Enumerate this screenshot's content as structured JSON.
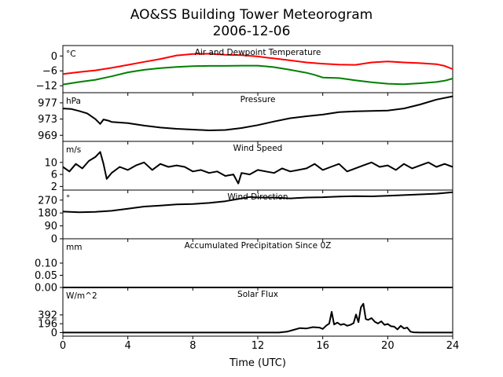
{
  "chart_data": {
    "type": "line",
    "title": "AO&SS Building Tower Meteorogram",
    "subtitle": "2006-12-06",
    "xlabel": "Time (UTC)",
    "xlim": [
      0,
      24
    ],
    "xticks": [
      0,
      4,
      8,
      12,
      16,
      20,
      24
    ],
    "panels": [
      {
        "title": "Air and Dewpoint Temperature",
        "unit": "°C",
        "ylim": [
          -14.8,
          4.2
        ],
        "yticks": [
          0,
          -6,
          -12
        ],
        "ytick_labels": [
          "0",
          "−6",
          "−12"
        ],
        "series": [
          {
            "color": "#ff0000",
            "x": [
              0,
              1,
              2,
              3,
              4,
              5,
              6,
              7,
              8,
              9,
              10,
              11,
              12,
              12.5,
              13,
              14,
              15,
              16,
              17,
              18,
              19,
              20,
              21,
              22,
              23,
              23.5,
              24
            ],
            "values": [
              -7.3,
              -6.5,
              -5.8,
              -4.8,
              -3.6,
              -2.4,
              -1.2,
              0.2,
              0.8,
              0.9,
              0.5,
              0.3,
              -0.2,
              -0.6,
              -1.0,
              -1.8,
              -2.6,
              -3.1,
              -3.5,
              -3.6,
              -2.6,
              -2.2,
              -2.6,
              -2.9,
              -3.3,
              -4.0,
              -5.3
            ]
          },
          {
            "color": "#008000",
            "x": [
              0,
              1,
              2,
              3,
              4,
              5,
              6,
              7,
              8,
              9,
              10,
              11,
              12,
              12.5,
              13,
              14,
              15,
              15.5,
              16,
              17,
              18,
              19,
              20,
              21,
              22,
              23,
              23.5,
              24
            ],
            "values": [
              -11.5,
              -10.5,
              -9.6,
              -8.2,
              -6.6,
              -5.6,
              -4.9,
              -4.4,
              -4.1,
              -4.0,
              -4.0,
              -3.9,
              -3.9,
              -4.2,
              -4.5,
              -5.6,
              -6.8,
              -7.6,
              -8.7,
              -8.9,
              -9.8,
              -10.6,
              -11.2,
              -11.4,
              -11.0,
              -10.5,
              -10.0,
              -9.1
            ]
          }
        ]
      },
      {
        "title": "Pressure",
        "unit": "hPa",
        "ylim": [
          967.5,
          979.5
        ],
        "yticks": [
          977,
          973,
          969
        ],
        "ytick_labels": [
          "977",
          "973",
          "969"
        ],
        "series": [
          {
            "color": "#000000",
            "x": [
              0,
              0.5,
              1,
              1.5,
              2,
              2.3,
              2.5,
              2.8,
              3,
              4,
              5,
              6,
              7,
              8,
              9,
              10,
              11,
              12,
              13,
              14,
              15,
              16,
              17,
              18,
              19,
              20,
              21,
              22,
              23,
              24
            ],
            "values": [
              975.6,
              975.5,
              975.0,
              974.4,
              973.0,
              971.8,
              972.9,
              972.6,
              972.3,
              972.0,
              971.4,
              970.9,
              970.6,
              970.4,
              970.2,
              970.3,
              970.8,
              971.5,
              972.4,
              973.2,
              973.7,
              974.1,
              974.7,
              974.9,
              975.0,
              975.1,
              975.6,
              976.6,
              977.8,
              978.6
            ]
          }
        ]
      },
      {
        "title": "Wind Speed",
        "unit": "m/s",
        "ylim": [
          0.8,
          17.0
        ],
        "yticks": [
          10,
          6,
          2
        ],
        "ytick_labels": [
          "10",
          "6",
          "2"
        ],
        "series": [
          {
            "color": "#000000",
            "x": [
              0,
              0.4,
              0.8,
              1.2,
              1.6,
              2.0,
              2.3,
              2.5,
              2.7,
              3.0,
              3.5,
              4.0,
              4.5,
              5.0,
              5.5,
              6.0,
              6.5,
              7.0,
              7.5,
              8.0,
              8.5,
              9.0,
              9.5,
              10.0,
              10.5,
              10.8,
              11.0,
              11.5,
              12.0,
              12.5,
              13.0,
              13.5,
              14.0,
              14.5,
              15.0,
              15.5,
              16.0,
              16.5,
              17.0,
              17.5,
              18.0,
              18.5,
              19.0,
              19.5,
              20.0,
              20.5,
              21.0,
              21.5,
              22.0,
              22.5,
              23.0,
              23.5,
              24.0
            ],
            "values": [
              8.5,
              7.0,
              9.5,
              8.0,
              10.5,
              11.8,
              13.5,
              9.5,
              4.5,
              6.5,
              8.5,
              7.5,
              9.0,
              10.0,
              7.5,
              9.5,
              8.5,
              9.0,
              8.5,
              7.0,
              7.5,
              6.5,
              7.0,
              5.5,
              6.0,
              3.0,
              6.5,
              6.0,
              7.5,
              7.0,
              6.5,
              8.0,
              7.0,
              7.5,
              8.0,
              9.5,
              7.5,
              8.5,
              9.5,
              7.0,
              8.0,
              9.0,
              10.0,
              8.5,
              9.0,
              7.5,
              9.5,
              8.0,
              9.0,
              10.0,
              8.5,
              9.5,
              8.5
            ]
          }
        ]
      },
      {
        "title": "Wind Direction",
        "unit": "°",
        "ylim": [
          0,
          340
        ],
        "yticks": [
          270,
          180,
          90,
          0
        ],
        "ytick_labels": [
          "270",
          "180",
          "90",
          "0"
        ],
        "series": [
          {
            "color": "#000000",
            "x": [
              0,
              1,
              2,
              3,
              4,
              5,
              6,
              7,
              8,
              9,
              10,
              10.5,
              11,
              11.5,
              12,
              13,
              14,
              15,
              16,
              17,
              18,
              19,
              20,
              21,
              22,
              23,
              24
            ],
            "values": [
              190,
              185,
              188,
              195,
              210,
              225,
              232,
              240,
              243,
              250,
              262,
              272,
              282,
              292,
              288,
              288,
              282,
              288,
              290,
              295,
              298,
              296,
              300,
              305,
              310,
              315,
              325
            ]
          }
        ]
      },
      {
        "title": "Accumulated Precipitation Since 0Z",
        "unit": "mm",
        "ylim": [
          0,
          0.2
        ],
        "yticks": [
          0.1,
          0.05,
          0.0
        ],
        "ytick_labels": [
          "0.10",
          "0.05",
          "0.00"
        ],
        "series": [
          {
            "color": "#000000",
            "x": [
              0,
              24
            ],
            "values": [
              0,
              0
            ]
          }
        ]
      },
      {
        "title": "Solar Flux",
        "unit": "W/m^2",
        "ylim": [
          -80,
          1000
        ],
        "yticks": [
          392,
          196,
          0
        ],
        "ytick_labels": [
          "392",
          "196",
          "0"
        ],
        "series": [
          {
            "color": "#000000",
            "x": [
              0,
              13.3,
              13.8,
              14.2,
              14.6,
              15.0,
              15.4,
              15.8,
              16.0,
              16.2,
              16.4,
              16.55,
              16.7,
              16.9,
              17.1,
              17.3,
              17.5,
              17.7,
              17.9,
              18.05,
              18.2,
              18.35,
              18.5,
              18.65,
              18.8,
              19.0,
              19.2,
              19.4,
              19.6,
              19.8,
              20.0,
              20.2,
              20.4,
              20.6,
              20.8,
              21.0,
              21.2,
              21.4,
              21.6,
              22.0,
              24
            ],
            "values": [
              0,
              0,
              20,
              60,
              100,
              90,
              120,
              110,
              80,
              150,
              200,
              460,
              180,
              220,
              170,
              190,
              150,
              170,
              210,
              400,
              230,
              560,
              640,
              300,
              280,
              320,
              240,
              200,
              250,
              170,
              190,
              140,
              130,
              70,
              150,
              90,
              110,
              20,
              5,
              0,
              0
            ]
          }
        ]
      }
    ]
  }
}
